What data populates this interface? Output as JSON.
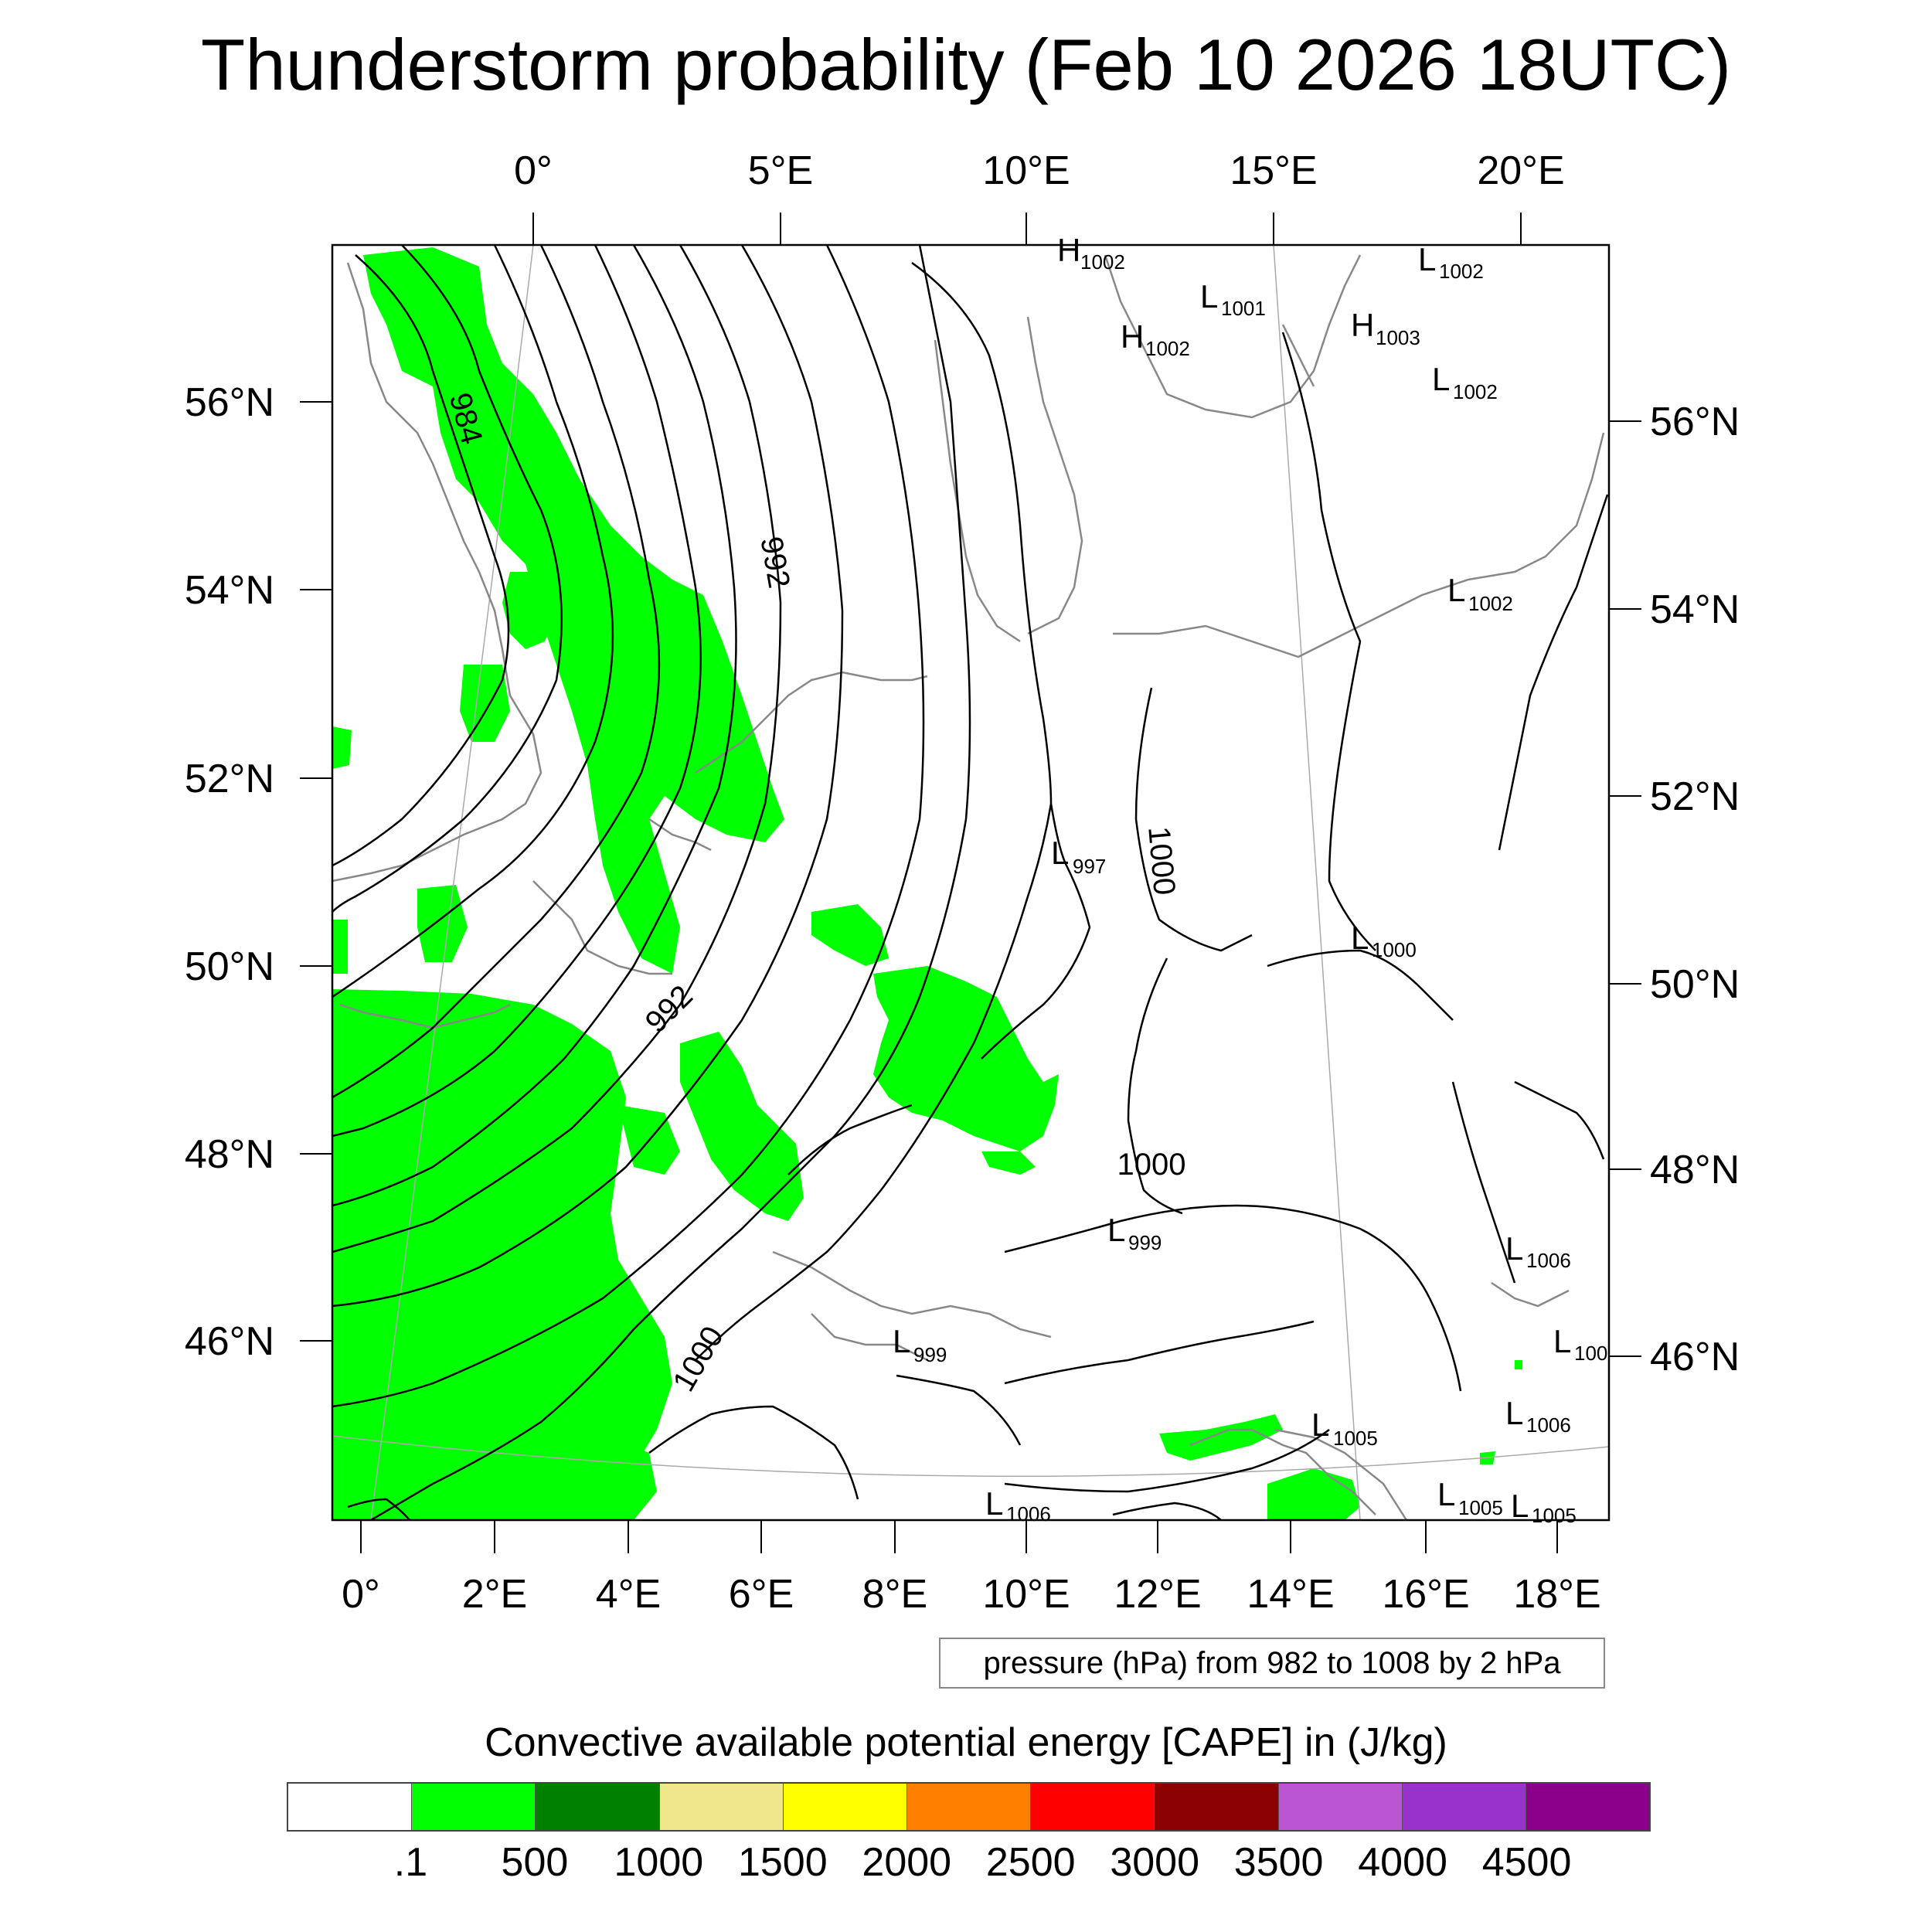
{
  "title": "Thunderstorm probability (Feb 10 2026 18UTC)",
  "map": {
    "top_lon_labels": [
      "0°",
      "5°E",
      "10°E",
      "15°E",
      "20°E"
    ],
    "bottom_lon_labels": [
      "0°",
      "2°E",
      "4°E",
      "6°E",
      "8°E",
      "10°E",
      "12°E",
      "14°E",
      "16°E",
      "18°E"
    ],
    "left_lat_labels": [
      "56°N",
      "54°N",
      "52°N",
      "50°N",
      "48°N",
      "46°N"
    ],
    "right_lat_labels": [
      "56°N",
      "54°N",
      "52°N",
      "50°N",
      "48°N",
      "46°N"
    ],
    "contour_labels": [
      "984",
      "992",
      "992",
      "1000",
      "1000",
      "1000"
    ],
    "pressure_centers": [
      {
        "letter": "H",
        "value": "1002"
      },
      {
        "letter": "L",
        "value": "1001"
      },
      {
        "letter": "H",
        "value": "1002"
      },
      {
        "letter": "H",
        "value": "1003"
      },
      {
        "letter": "L",
        "value": "1002"
      },
      {
        "letter": "L",
        "value": "1002"
      },
      {
        "letter": "L",
        "value": "1002"
      },
      {
        "letter": "L",
        "value": "997"
      },
      {
        "letter": "L",
        "value": "1000"
      },
      {
        "letter": "L",
        "value": "999"
      },
      {
        "letter": "L",
        "value": "1006"
      },
      {
        "letter": "L",
        "value": "100"
      },
      {
        "letter": "L",
        "value": "999"
      },
      {
        "letter": "L",
        "value": "1005"
      },
      {
        "letter": "L",
        "value": "1006"
      },
      {
        "letter": "L",
        "value": "1005"
      },
      {
        "letter": "L",
        "value": "1005"
      },
      {
        "letter": "L",
        "value": "1006"
      }
    ],
    "colors": {
      "cape_fill": "#00ff00",
      "contour": "#000000",
      "coast": "#888888",
      "grid": "#aaaaaa"
    }
  },
  "contour_info": "pressure (hPa) from 982 to 1008 by 2 hPa",
  "colorbar": {
    "title": "Convective available potential energy [CAPE] in (J/kg)",
    "colors": [
      "#ffffff",
      "#00ff00",
      "#008000",
      "#f0e68c",
      "#ffff00",
      "#ff8000",
      "#ff0000",
      "#8b0000",
      "#ba55d3",
      "#9932cc",
      "#8b008b"
    ],
    "tick_labels": [
      ".1",
      "500",
      "1000",
      "1500",
      "2000",
      "2500",
      "3000",
      "3500",
      "4000",
      "4500"
    ]
  }
}
